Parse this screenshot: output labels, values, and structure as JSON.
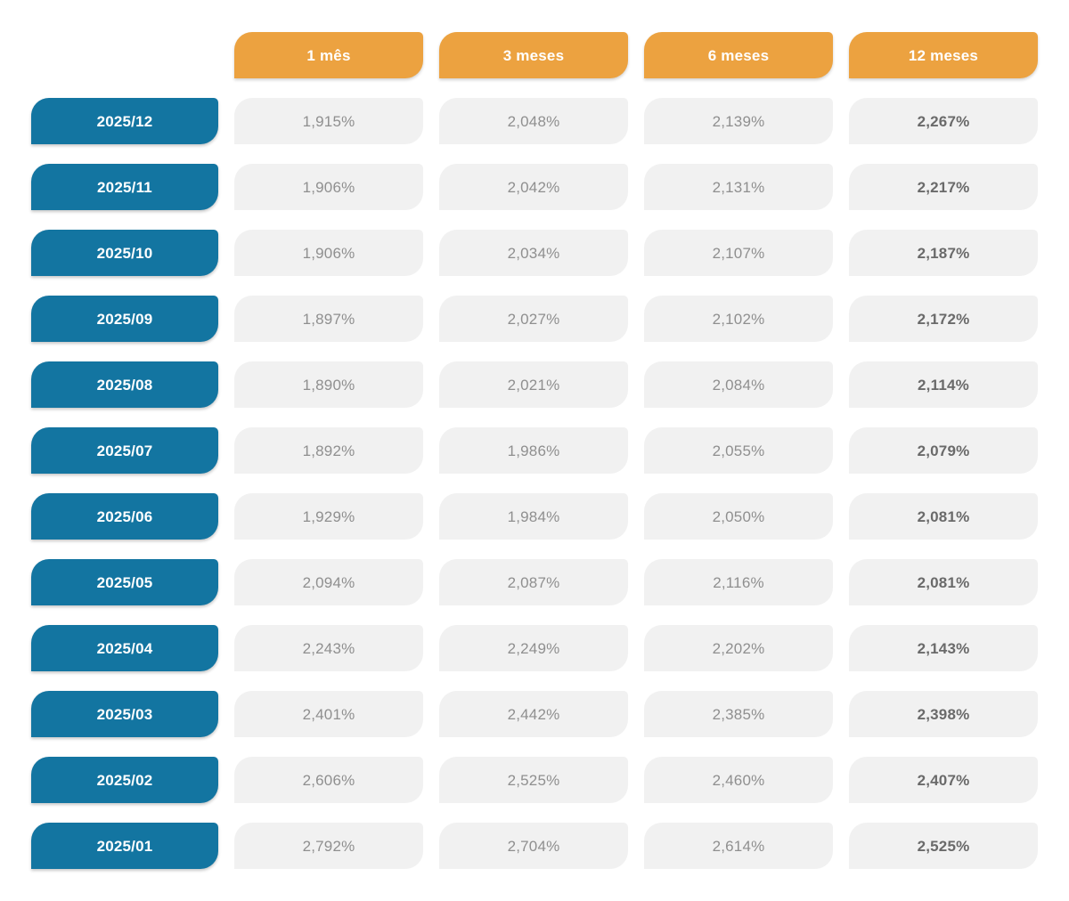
{
  "colors": {
    "header_orange": "#ECA240",
    "label_blue": "#1375A1",
    "cell_bg": "#F1F1F1",
    "cell_text": "#8F8F8F",
    "cell_text_bold": "#6A6A6A",
    "header_text": "#FFFFFF"
  },
  "chart_data": {
    "type": "table",
    "title": "",
    "columns": [
      "1 mês",
      "3 meses",
      "6 meses",
      "12 meses"
    ],
    "row_labels": [
      "2025/12",
      "2025/11",
      "2025/10",
      "2025/09",
      "2025/08",
      "2025/07",
      "2025/06",
      "2025/05",
      "2025/04",
      "2025/03",
      "2025/02",
      "2025/01"
    ],
    "rows": [
      [
        "1,915%",
        "2,048%",
        "2,139%",
        "2,267%"
      ],
      [
        "1,906%",
        "2,042%",
        "2,131%",
        "2,217%"
      ],
      [
        "1,906%",
        "2,034%",
        "2,107%",
        "2,187%"
      ],
      [
        "1,897%",
        "2,027%",
        "2,102%",
        "2,172%"
      ],
      [
        "1,890%",
        "2,021%",
        "2,084%",
        "2,114%"
      ],
      [
        "1,892%",
        "1,986%",
        "2,055%",
        "2,079%"
      ],
      [
        "1,929%",
        "1,984%",
        "2,050%",
        "2,081%"
      ],
      [
        "2,094%",
        "2,087%",
        "2,116%",
        "2,081%"
      ],
      [
        "2,243%",
        "2,249%",
        "2,202%",
        "2,143%"
      ],
      [
        "2,401%",
        "2,442%",
        "2,385%",
        "2,398%"
      ],
      [
        "2,606%",
        "2,525%",
        "2,460%",
        "2,407%"
      ],
      [
        "2,792%",
        "2,704%",
        "2,614%",
        "2,525%"
      ]
    ],
    "unit": "%",
    "layout_hints": {
      "bold_column": "12 meses",
      "decimal_separator": ","
    }
  }
}
